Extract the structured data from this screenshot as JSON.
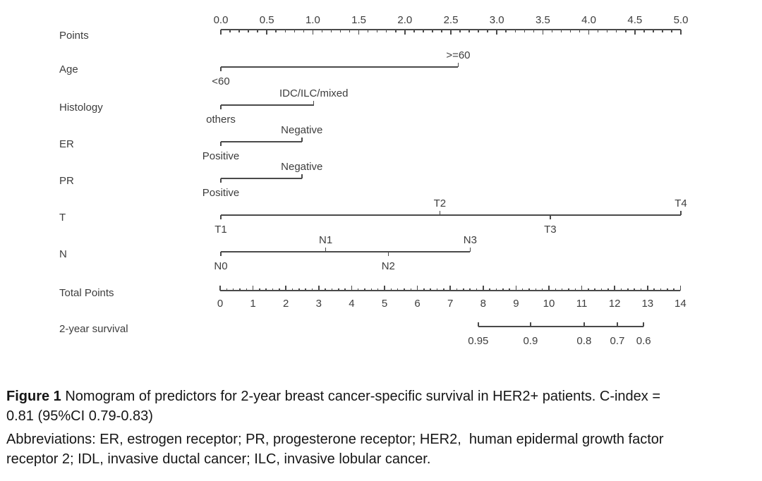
{
  "figure": {
    "caption_line1_bold": "Figure 1",
    "caption_line1_rest": " Nomogram of predictors for 2-year breast cancer-specific survival in HER2+ patients. C-index =",
    "caption_line2": "0.81 (95%CI 0.79-0.83)",
    "abbrev_line1": "Abbreviations: ER, estrogen receptor; PR, progesterone receptor; HER2,  human epidermal growth factor",
    "abbrev_line2": "receptor 2; IDL, invasive ductal cancer; ILC, invasive lobular cancer."
  },
  "chart_data": {
    "type": "nomogram",
    "colors": {
      "line": "#4a4a4a",
      "chart_text": "#3d3d3d",
      "caption_text": "#161616",
      "background": "#ffffff"
    },
    "point_axis": {
      "label": "Points",
      "min": 0,
      "max": 5,
      "major_step": 0.5,
      "minor_step": 0.1,
      "major_labels": [
        "0.0",
        "0.5",
        "1.0",
        "1.5",
        "2.0",
        "2.5",
        "3.0",
        "3.5",
        "4.0",
        "4.5",
        "5.0"
      ]
    },
    "predictors": [
      {
        "label": "Age",
        "categories": [
          {
            "text": "<60",
            "points": 0,
            "side": "below"
          },
          {
            "text": ">=60",
            "points": 2.58,
            "side": "above"
          }
        ]
      },
      {
        "label": "Histology",
        "categories": [
          {
            "text": "others",
            "points": 0,
            "side": "below"
          },
          {
            "text": "IDC/ILC/mixed",
            "points": 1.01,
            "side": "above"
          }
        ]
      },
      {
        "label": "ER",
        "categories": [
          {
            "text": "Positive",
            "points": 0,
            "side": "below"
          },
          {
            "text": "Negative",
            "points": 0.88,
            "side": "above"
          }
        ]
      },
      {
        "label": "PR",
        "categories": [
          {
            "text": "Positive",
            "points": 0,
            "side": "below"
          },
          {
            "text": "Negative",
            "points": 0.88,
            "side": "above"
          }
        ]
      },
      {
        "label": "T",
        "categories": [
          {
            "text": "T1",
            "points": 0,
            "side": "below"
          },
          {
            "text": "T2",
            "points": 2.38,
            "side": "above"
          },
          {
            "text": "T3",
            "points": 3.58,
            "side": "below"
          },
          {
            "text": "T4",
            "points": 5.0,
            "side": "above"
          }
        ]
      },
      {
        "label": "N",
        "categories": [
          {
            "text": "N0",
            "points": 0,
            "side": "below"
          },
          {
            "text": "N1",
            "points": 1.14,
            "side": "above"
          },
          {
            "text": "N2",
            "points": 1.82,
            "side": "below"
          },
          {
            "text": "N3",
            "points": 2.71,
            "side": "above"
          }
        ]
      }
    ],
    "total_points_axis": {
      "label": "Total Points",
      "min": 0,
      "max": 14,
      "major_step": 1,
      "minor_step": 0.2,
      "major_labels": [
        "0",
        "1",
        "2",
        "3",
        "4",
        "5",
        "6",
        "7",
        "8",
        "9",
        "10",
        "11",
        "12",
        "13",
        "14"
      ]
    },
    "survival_axis": {
      "label": "2-year survival",
      "ticks": [
        {
          "label": "0.95",
          "total_points": 7.85
        },
        {
          "label": "0.9",
          "total_points": 9.44
        },
        {
          "label": "0.8",
          "total_points": 11.07
        },
        {
          "label": "0.7",
          "total_points": 12.08
        },
        {
          "label": "0.6",
          "total_points": 12.88
        }
      ]
    }
  }
}
